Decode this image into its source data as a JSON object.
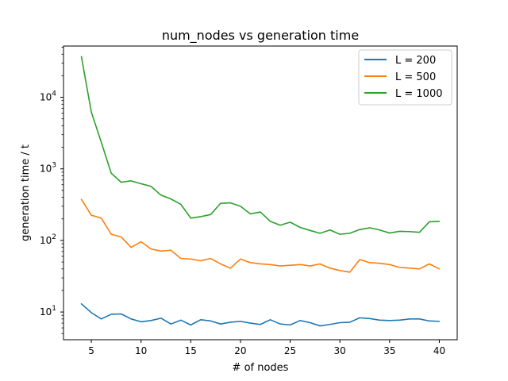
{
  "chart_data": {
    "type": "line",
    "title": "num_nodes vs generation time",
    "xlabel": "# of nodes",
    "ylabel": "generation time / t",
    "yscale": "log",
    "xlim": [
      2.2,
      41.8
    ],
    "ylim": [
      4.1,
      52000
    ],
    "xticks": [
      5,
      10,
      15,
      20,
      25,
      30,
      35,
      40
    ],
    "yticks": [
      {
        "value": 10,
        "mantissa": "10",
        "exponent": "1"
      },
      {
        "value": 100,
        "mantissa": "10",
        "exponent": "2"
      },
      {
        "value": 1000,
        "mantissa": "10",
        "exponent": "3"
      },
      {
        "value": 10000,
        "mantissa": "10",
        "exponent": "4"
      }
    ],
    "grid": false,
    "legend_position": "top-right",
    "x": [
      4,
      5,
      6,
      7,
      8,
      9,
      10,
      11,
      12,
      13,
      14,
      15,
      16,
      17,
      18,
      19,
      20,
      21,
      22,
      23,
      24,
      25,
      26,
      27,
      28,
      29,
      30,
      31,
      32,
      33,
      34,
      35,
      36,
      37,
      38,
      39,
      40
    ],
    "series": [
      {
        "name": "L = 200",
        "color": "#1f77b4",
        "values": [
          13.0,
          9.8,
          8.0,
          9.3,
          9.4,
          8.0,
          7.3,
          7.6,
          8.2,
          6.8,
          7.7,
          6.6,
          7.8,
          7.5,
          6.8,
          7.2,
          7.4,
          7.0,
          6.7,
          7.8,
          6.8,
          6.6,
          7.6,
          7.1,
          6.4,
          6.7,
          7.1,
          7.2,
          8.3,
          8.1,
          7.7,
          7.6,
          7.7,
          8.0,
          8.0,
          7.5,
          7.4
        ]
      },
      {
        "name": "L = 500",
        "color": "#ff7f0e",
        "values": [
          375,
          225,
          205,
          122,
          112,
          80,
          96,
          76,
          71,
          73,
          56,
          55,
          52,
          56,
          47,
          41,
          55,
          49,
          47,
          46,
          44,
          45,
          46,
          44,
          47,
          41,
          38,
          36,
          54,
          49,
          48,
          46,
          42,
          41,
          40,
          47,
          40
        ]
      },
      {
        "name": "L = 1000",
        "color": "#2ca02c",
        "values": [
          37000,
          6200,
          2350,
          870,
          650,
          680,
          620,
          570,
          430,
          380,
          320,
          205,
          215,
          230,
          330,
          335,
          300,
          235,
          250,
          185,
          163,
          180,
          152,
          138,
          126,
          140,
          122,
          126,
          142,
          150,
          140,
          127,
          134,
          133,
          130,
          182,
          185
        ]
      }
    ]
  }
}
